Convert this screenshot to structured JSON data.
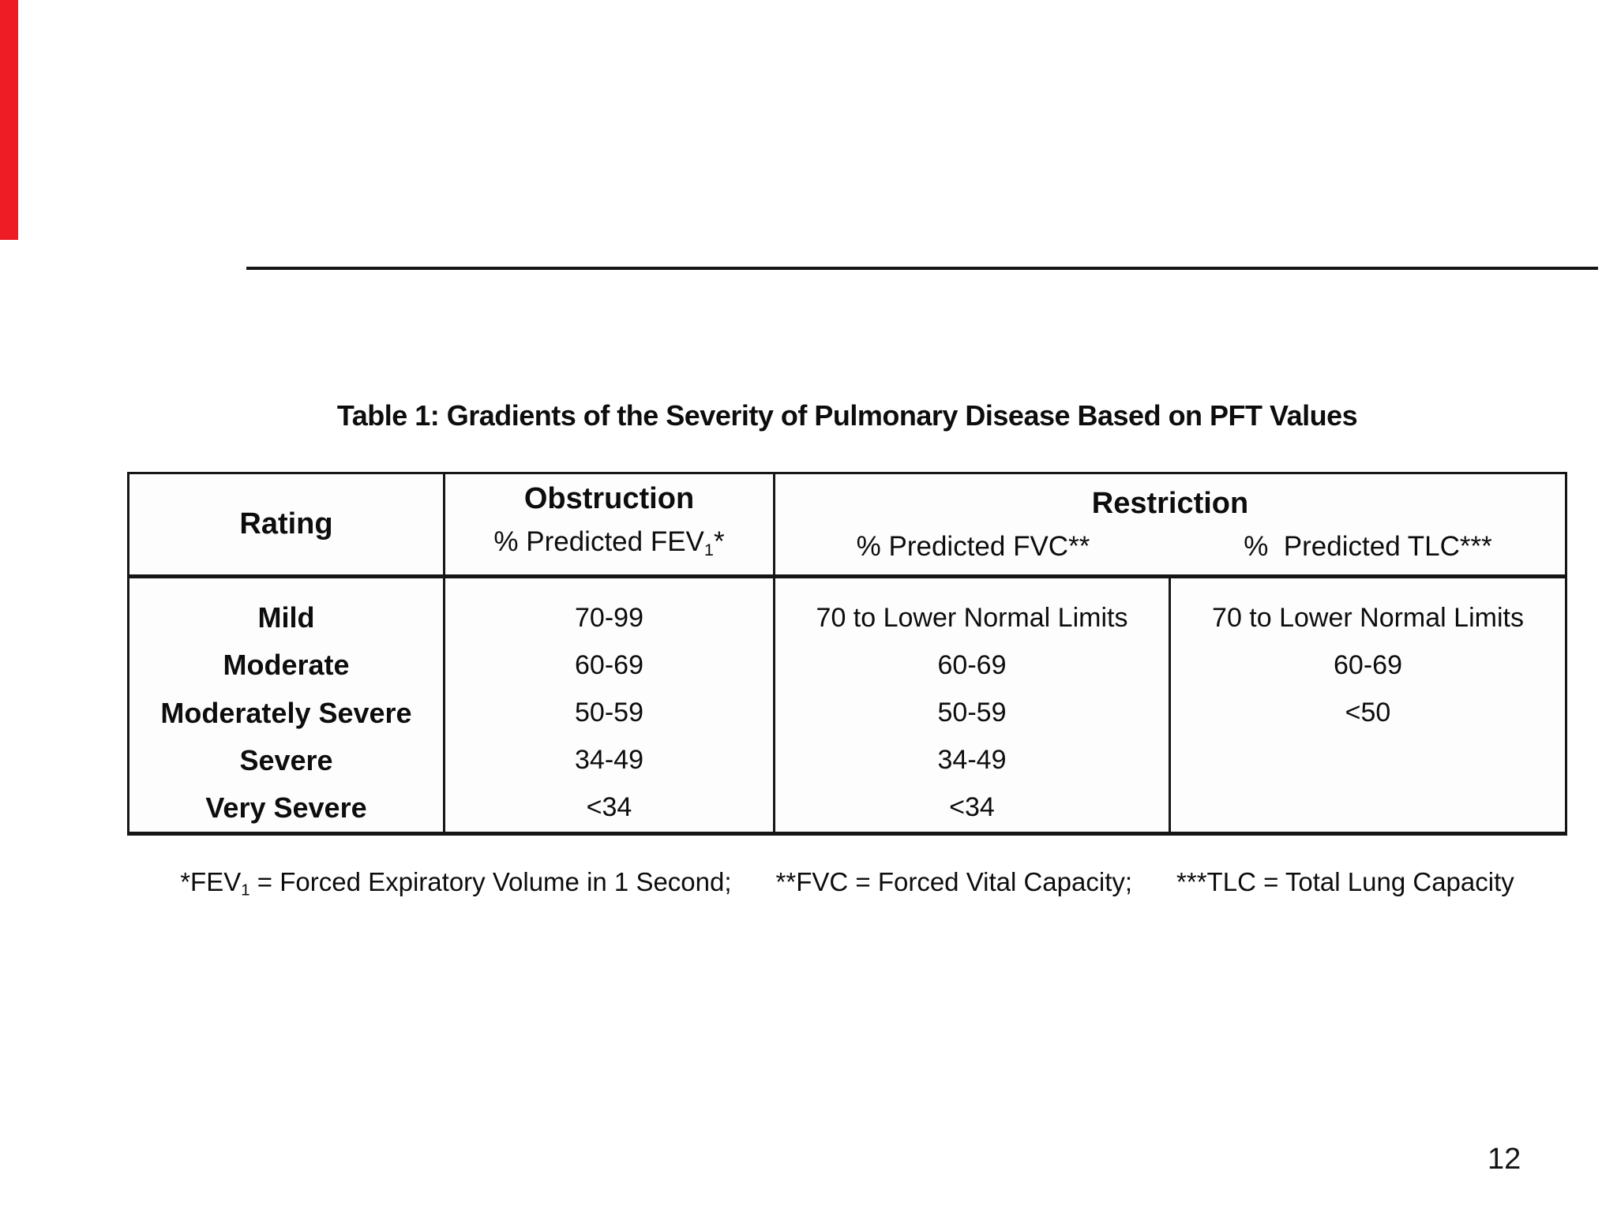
{
  "page": {
    "number": "12",
    "accent_bar_color": "#ee1c25"
  },
  "table": {
    "title": "Table 1: Gradients of the Severity of Pulmonary Disease Based on PFT Values",
    "header": {
      "rating_label": "Rating",
      "obstruction_label": "Obstruction",
      "obstruction_measure_prefix": "% Predicted FEV",
      "obstruction_measure_sub": "1",
      "obstruction_measure_suffix": "*",
      "restriction_label": "Restriction",
      "fvc_label": "% Predicted FVC**",
      "tlc_label": "%  Predicted TLC***"
    },
    "rows": [
      {
        "rating": "Mild",
        "fev": "70-99",
        "fvc": "70 to Lower Normal Limits",
        "tlc": "70 to Lower Normal Limits"
      },
      {
        "rating": "Moderate",
        "fev": "60-69",
        "fvc": "60-69",
        "tlc": "60-69"
      },
      {
        "rating": "Moderately Severe",
        "fev": "50-59",
        "fvc": "50-59",
        "tlc": "<50"
      },
      {
        "rating": "Severe",
        "fev": "34-49",
        "fvc": "34-49",
        "tlc": ""
      },
      {
        "rating": "Very Severe",
        "fev": "<34",
        "fvc": "<34",
        "tlc": ""
      }
    ],
    "footnote": {
      "fev_prefix": "*FEV",
      "fev_sub": "1",
      "fev_text": " = Forced Expiratory Volume in 1 Second;",
      "fvc_text": "**FVC = Forced Vital Capacity;",
      "tlc_text": "***TLC = Total Lung Capacity"
    }
  }
}
